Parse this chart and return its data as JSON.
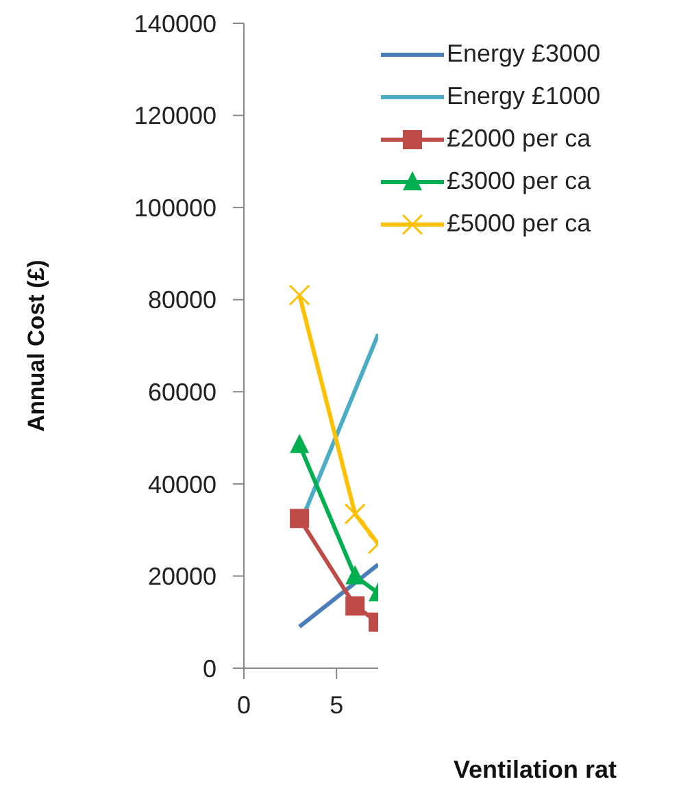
{
  "chart_data": {
    "type": "line",
    "xlabel": "Ventilation rat",
    "ylabel": "Annual Cost (£)",
    "xlim": [
      0,
      7.25
    ],
    "xticks": [
      0,
      5
    ],
    "ylim": [
      0,
      140000
    ],
    "yticks": [
      0,
      20000,
      40000,
      60000,
      80000,
      100000,
      120000,
      140000
    ],
    "grid": false,
    "legend": "top right",
    "line_style": "solid",
    "series": [
      {
        "name": "Energy £3000",
        "color": "#4a7ebb",
        "marker": "none",
        "x": [
          3,
          7.25
        ],
        "values": [
          9000,
          22500
        ]
      },
      {
        "name": "Energy £1000",
        "color": "#4bacc6",
        "marker": "none",
        "x": [
          3,
          7.25
        ],
        "values": [
          31000,
          72500
        ]
      },
      {
        "name": "£2000 per ca",
        "color": "#be4b48",
        "marker": "square",
        "x": [
          3,
          6,
          7.25
        ],
        "values": [
          32500,
          13500,
          10000
        ]
      },
      {
        "name": "£3000 per ca",
        "color": "#00b050",
        "marker": "triangle",
        "x": [
          3,
          6,
          7.25
        ],
        "values": [
          48500,
          20000,
          16300
        ]
      },
      {
        "name": "£5000 per ca",
        "color": "#ffc000",
        "marker": "cross",
        "x": [
          3,
          6,
          7.25
        ],
        "values": [
          81000,
          33500,
          27000
        ]
      }
    ]
  }
}
